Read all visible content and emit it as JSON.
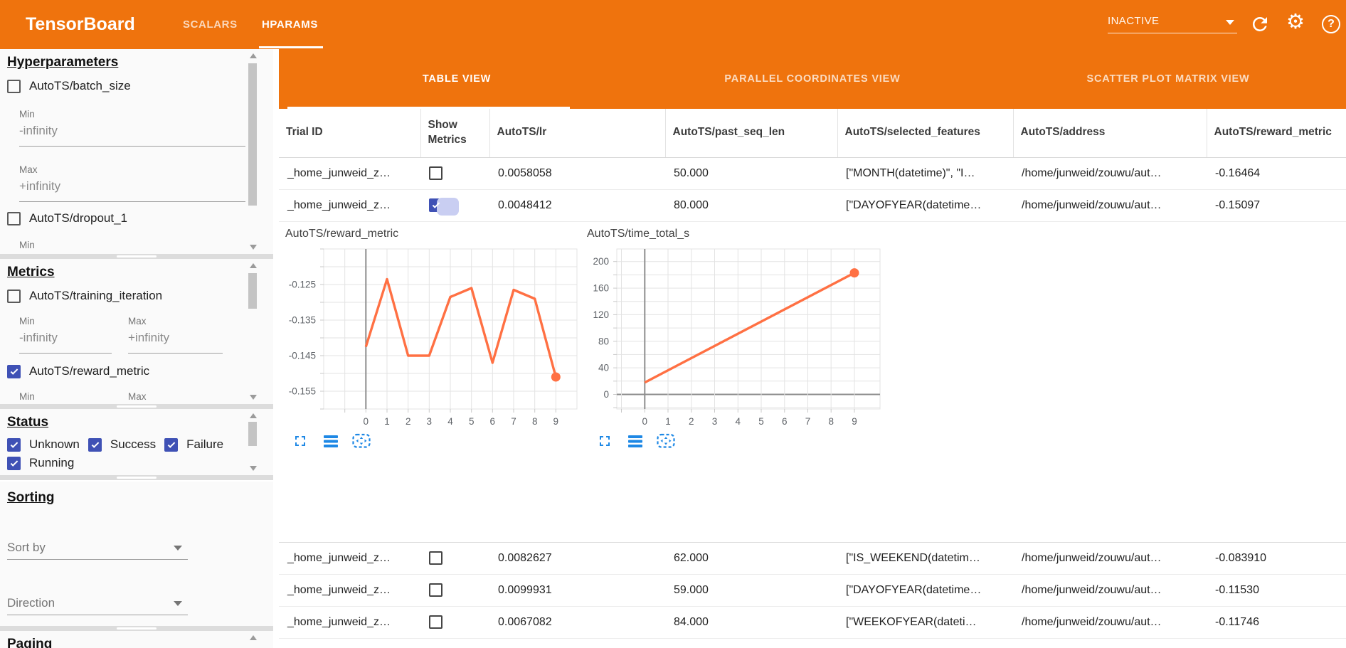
{
  "top_bar": {
    "title": "TensorBoard",
    "nav_tabs": [
      {
        "label": "SCALARS",
        "active": false
      },
      {
        "label": "HPARAMS",
        "active": true
      }
    ],
    "run_selector": "INACTIVE",
    "help_glyph": "?"
  },
  "sidebar": {
    "hyperparameters": {
      "title": "Hyperparameters",
      "params": [
        {
          "label": "AutoTS/batch_size",
          "checked": false
        },
        {
          "label": "AutoTS/dropout_1",
          "checked": false
        }
      ],
      "min_label": "Min",
      "max_label": "Max",
      "min_value": "-infinity",
      "max_value": "+infinity",
      "trailing_label": "Min"
    },
    "metrics": {
      "title": "Metrics",
      "items": [
        {
          "label": "AutoTS/training_iteration",
          "checked": false
        },
        {
          "label": "AutoTS/reward_metric",
          "checked": true
        }
      ],
      "min_label": "Min",
      "max_label": "Max",
      "min_value": "-infinity",
      "max_value": "+infinity",
      "trailing_min": "Min",
      "trailing_max": "Max"
    },
    "status": {
      "title": "Status",
      "options": [
        {
          "label": "Unknown",
          "checked": true
        },
        {
          "label": "Success",
          "checked": true
        },
        {
          "label": "Failure",
          "checked": true
        },
        {
          "label": "Running",
          "checked": true
        }
      ]
    },
    "sorting": {
      "title": "Sorting",
      "sort_by": "Sort by",
      "direction": "Direction"
    },
    "paging": {
      "title": "Paging"
    }
  },
  "view_tabs": {
    "tabs": [
      {
        "label": "TABLE VIEW",
        "active": true
      },
      {
        "label": "PARALLEL COORDINATES VIEW",
        "active": false
      },
      {
        "label": "SCATTER PLOT MATRIX VIEW",
        "active": false
      }
    ]
  },
  "table": {
    "columns": [
      "Trial ID",
      "Show Metrics",
      "AutoTS/lr",
      "AutoTS/past_seq_len",
      "AutoTS/selected_features",
      "AutoTS/address",
      "AutoTS/reward_metric"
    ],
    "rows": [
      {
        "trial_id": "_home_junweid_z…",
        "show_metrics": false,
        "lr": "0.0058058",
        "past_seq_len": "50.000",
        "selected_features": "[\"MONTH(datetime)\", \"I…",
        "address": "/home/junweid/zouwu/aut…",
        "reward_metric": "-0.16464"
      },
      {
        "trial_id": "_home_junweid_z…",
        "show_metrics": true,
        "lr": "0.0048412",
        "past_seq_len": "80.000",
        "selected_features": "[\"DAYOFYEAR(datetime…",
        "address": "/home/junweid/zouwu/aut…",
        "reward_metric": "-0.15097"
      },
      {
        "trial_id": "_home_junweid_z…",
        "show_metrics": false,
        "lr": "0.0082627",
        "past_seq_len": "62.000",
        "selected_features": "[\"IS_WEEKEND(datetim…",
        "address": "/home/junweid/zouwu/aut…",
        "reward_metric": "-0.083910"
      },
      {
        "trial_id": "_home_junweid_z…",
        "show_metrics": false,
        "lr": "0.0099931",
        "past_seq_len": "59.000",
        "selected_features": "[\"DAYOFYEAR(datetime…",
        "address": "/home/junweid/zouwu/aut…",
        "reward_metric": "-0.11530"
      },
      {
        "trial_id": "_home_junweid_z…",
        "show_metrics": false,
        "lr": "0.0067082",
        "past_seq_len": "84.000",
        "selected_features": "[\"WEEKOFYEAR(dateti…",
        "address": "/home/junweid/zouwu/aut…",
        "reward_metric": "-0.11746"
      }
    ]
  },
  "chart_data": [
    {
      "type": "line",
      "title": "AutoTS/reward_metric",
      "x": [
        0,
        1,
        2,
        3,
        4,
        5,
        6,
        7,
        8,
        9
      ],
      "values": [
        -0.1425,
        -0.1235,
        -0.145,
        -0.145,
        -0.1285,
        -0.126,
        -0.147,
        -0.1265,
        -0.129,
        -0.151
      ],
      "xlim": [
        -2,
        10
      ],
      "ylim": [
        -0.16,
        -0.115
      ],
      "xgrid": [
        -1,
        0,
        1,
        2,
        3,
        4,
        5,
        6,
        7,
        8,
        9
      ],
      "ygrid": [
        -0.16,
        -0.155,
        -0.15,
        -0.145,
        -0.14,
        -0.135,
        -0.13,
        -0.125,
        -0.12,
        -0.115
      ],
      "xticks": [
        0,
        1,
        2,
        3,
        4,
        5,
        6,
        7,
        8,
        9
      ],
      "yticks": [
        -0.125,
        -0.135,
        -0.145,
        -0.155
      ],
      "ytick_labels": [
        "-0.125",
        "-0.135",
        "-0.145",
        "-0.155"
      ],
      "grid": true,
      "end_dot": true,
      "color": "#ff7043"
    },
    {
      "type": "line",
      "title": "AutoTS/time_total_s",
      "x": [
        0,
        9
      ],
      "values": [
        18,
        183
      ],
      "xlim": [
        -1.2,
        10.1
      ],
      "ylim": [
        -22,
        219
      ],
      "xgrid": [
        -1,
        0,
        1,
        2,
        3,
        4,
        5,
        6,
        7,
        8,
        9
      ],
      "ygrid": [
        -20,
        0,
        20,
        40,
        60,
        80,
        100,
        120,
        140,
        160,
        180,
        200
      ],
      "xticks": [
        0,
        1,
        2,
        3,
        4,
        5,
        6,
        7,
        8,
        9
      ],
      "yticks": [
        0,
        40,
        80,
        120,
        160,
        200
      ],
      "ytick_labels": [
        "0",
        "40",
        "80",
        "120",
        "160",
        "200"
      ],
      "grid": true,
      "end_dot": true,
      "color": "#ff7043"
    }
  ],
  "colors": {
    "accent_orange": "#ef730d",
    "checkbox_indigo": "#3f51b5",
    "chart_line": "#ff7043",
    "icon_blue": "#1e88e5"
  }
}
